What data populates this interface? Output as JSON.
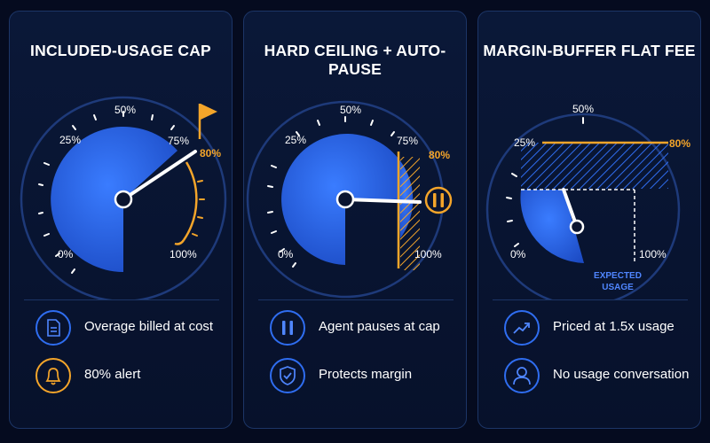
{
  "panels": [
    {
      "title": "INCLUDED-USAGE CAP",
      "ticks": {
        "t0": "0%",
        "t25": "25%",
        "t50": "50%",
        "t75": "75%",
        "t100": "100%"
      },
      "marker_label": "80%",
      "fill_fraction": 0.8,
      "features": [
        {
          "icon": "document-icon",
          "label": "Overage billed at cost"
        },
        {
          "icon": "bell-icon",
          "label": "80% alert"
        }
      ]
    },
    {
      "title": "HARD CEILING + AUTO-PAUSE",
      "ticks": {
        "t0": "0%",
        "t25": "25%",
        "t50": "50%",
        "t75": "75%",
        "t100": "100%"
      },
      "marker_label": "80%",
      "fill_fraction": 0.8,
      "features": [
        {
          "icon": "pause-icon",
          "label": "Agent pauses at cap"
        },
        {
          "icon": "shield-check-icon",
          "label": "Protects margin"
        }
      ]
    },
    {
      "title": "MARGIN-BUFFER FLAT FEE",
      "ticks": {
        "t0": "0%",
        "t25": "25%",
        "t50": "50%",
        "t100": "100%"
      },
      "marker_label": "80%",
      "expected_label_line1": "EXPECTED",
      "expected_label_line2": "USAGE",
      "features": [
        {
          "icon": "trend-up-icon",
          "label": "Priced at 1.5x usage"
        },
        {
          "icon": "user-icon",
          "label": "No usage conversation"
        }
      ]
    }
  ],
  "colors": {
    "background": "#050b1f",
    "gauge_blue": "#2f6df0",
    "accent_orange": "#f4a52a",
    "ring": "#1e3a7a",
    "label_blue": "#4f86ff"
  }
}
